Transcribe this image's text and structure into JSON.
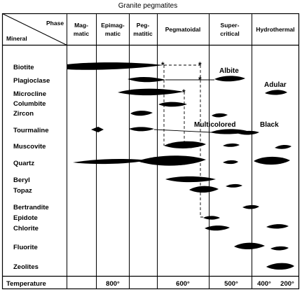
{
  "title": "Granite pegmatites",
  "corner": {
    "phase": "Phase",
    "mineral": "Mineral"
  },
  "phases": [
    {
      "l1": "Mag-",
      "l2": "matic"
    },
    {
      "l1": "Epimag-",
      "l2": "matic"
    },
    {
      "l1": "Peg-",
      "l2": "matitic"
    },
    {
      "l1": "Pegmatoidal",
      "l2": ""
    },
    {
      "l1": "Super-",
      "l2": "critical"
    },
    {
      "l1": "Hydrothermal",
      "l2": ""
    }
  ],
  "minerals": [
    "Biotite",
    "Plagioclase",
    "Microcline",
    "Columbite",
    "Zircon",
    "Tourmaline",
    "Muscovite",
    "Quartz",
    "Beryl",
    "Topaz",
    "Bertrandite",
    "Epidote",
    "Chlorite",
    "Fluorite",
    "Zeolites"
  ],
  "annotations": [
    "Albite",
    "Adular",
    "Multicolored",
    "Black"
  ],
  "footer": {
    "label": "Temperature",
    "temps": [
      "800°",
      "600°",
      "500°",
      "400°",
      "200°"
    ]
  }
}
